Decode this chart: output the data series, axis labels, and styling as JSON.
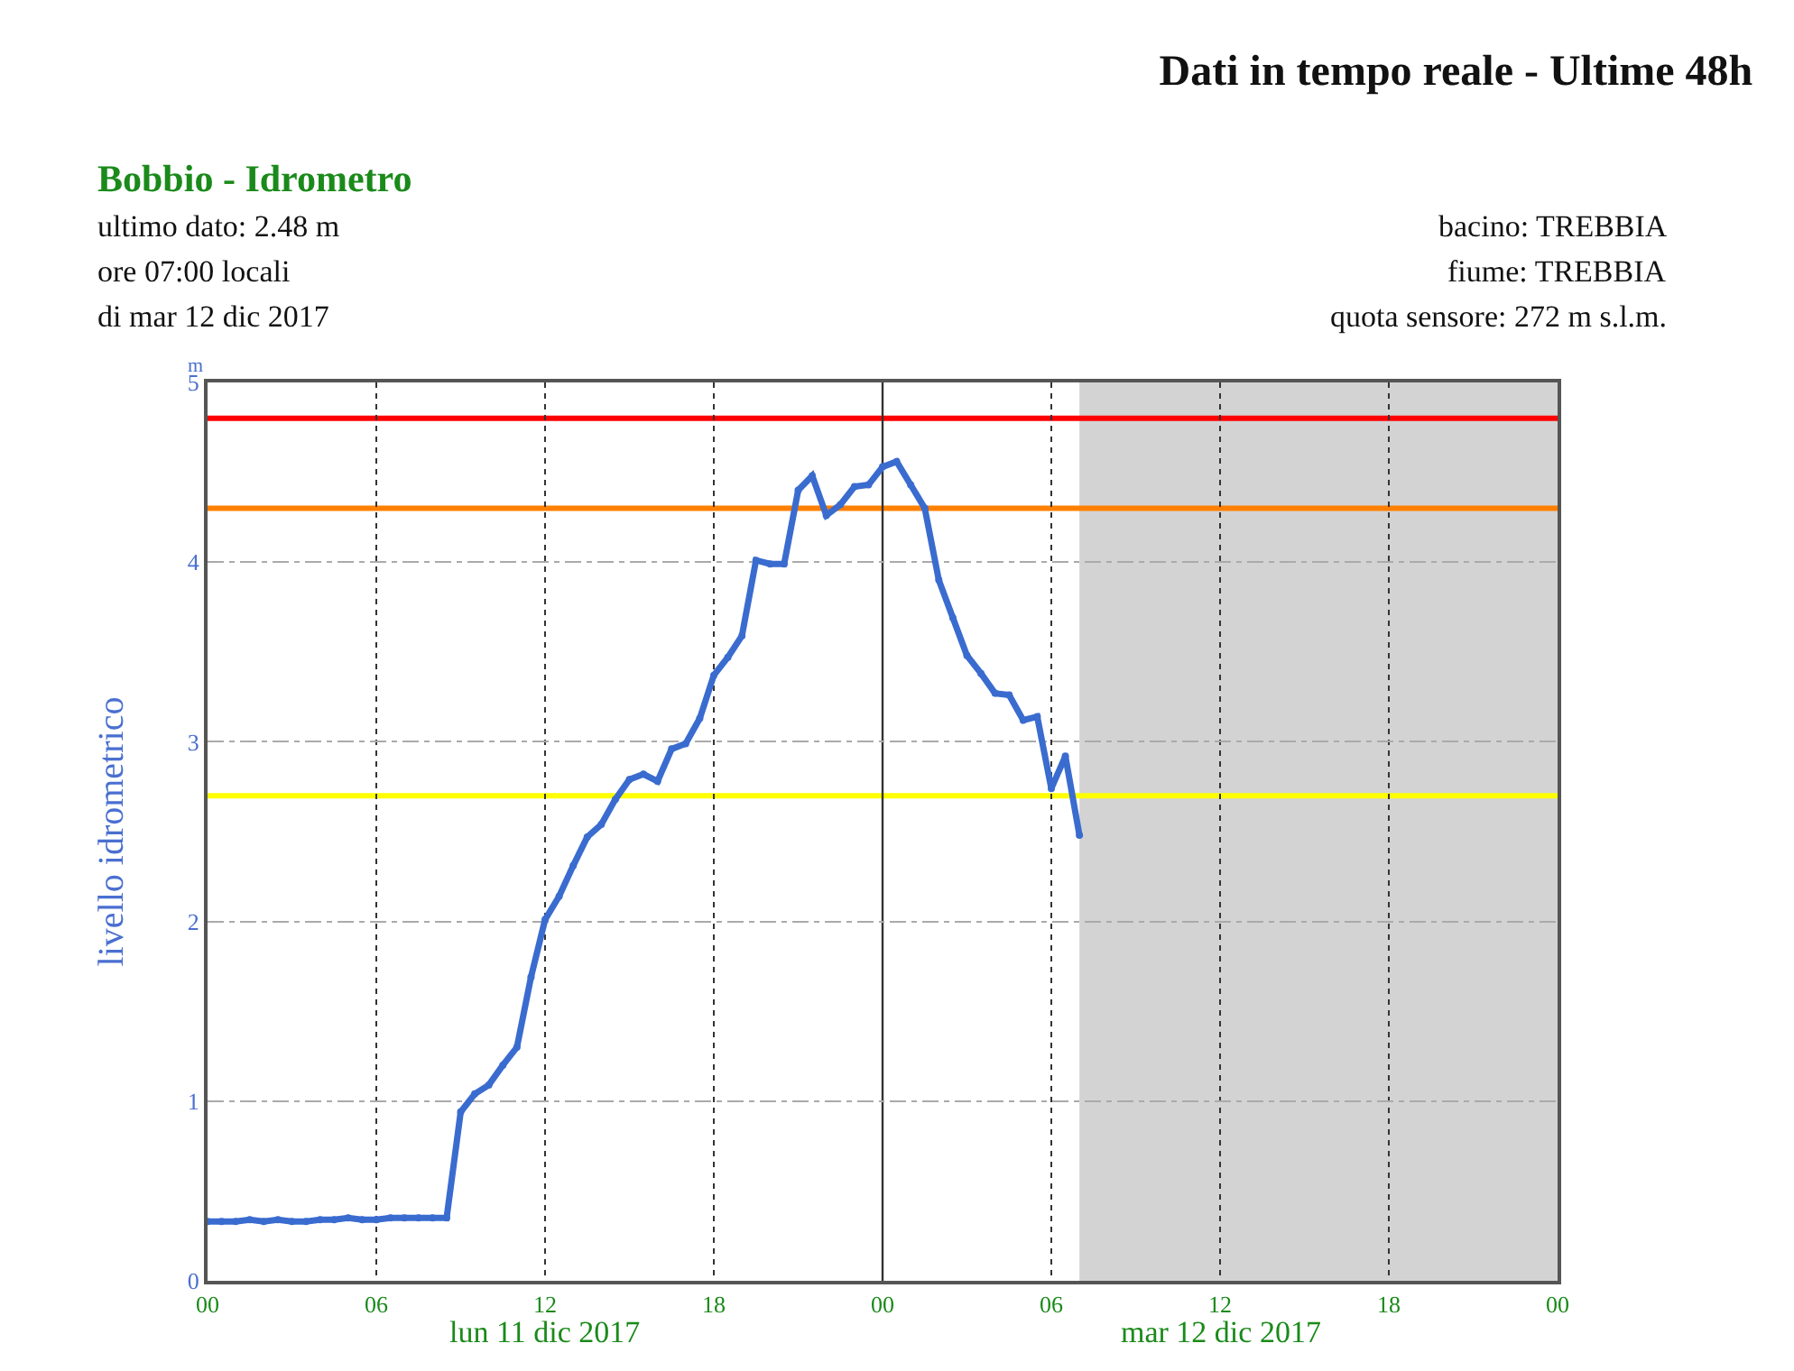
{
  "chart_data": {
    "type": "line",
    "title": "Dati in tempo reale - Ultime 48h",
    "subtitle": "Bobbio - Idrometro",
    "ylabel": "livello idrometrico",
    "annotations": [
      "m",
      "ultimo dato: 2.48 m",
      "ore 07:00 locali",
      "di mar 12 dic 2017",
      "bacino: TREBBIA",
      "fiume: TREBBIA",
      "quota sensore: 272 m s.l.m.",
      "lun 11 dic 2017",
      "mar 12 dic 2017"
    ],
    "x": [
      "2017-12-11T00:00",
      "2017-12-11T00:30",
      "2017-12-11T01:00",
      "2017-12-11T01:30",
      "2017-12-11T02:00",
      "2017-12-11T02:30",
      "2017-12-11T03:00",
      "2017-12-11T03:30",
      "2017-12-11T04:00",
      "2017-12-11T04:30",
      "2017-12-11T05:00",
      "2017-12-11T05:30",
      "2017-12-11T06:00",
      "2017-12-11T06:30",
      "2017-12-11T07:00",
      "2017-12-11T07:30",
      "2017-12-11T08:00",
      "2017-12-11T08:30",
      "2017-12-11T09:00",
      "2017-12-11T09:30",
      "2017-12-11T10:00",
      "2017-12-11T10:30",
      "2017-12-11T11:00",
      "2017-12-11T11:30",
      "2017-12-11T12:00",
      "2017-12-11T12:30",
      "2017-12-11T13:00",
      "2017-12-11T13:30",
      "2017-12-11T14:00",
      "2017-12-11T14:30",
      "2017-12-11T15:00",
      "2017-12-11T15:30",
      "2017-12-11T16:00",
      "2017-12-11T16:30",
      "2017-12-11T17:00",
      "2017-12-11T17:30",
      "2017-12-11T18:00",
      "2017-12-11T18:30",
      "2017-12-11T19:00",
      "2017-12-11T19:30",
      "2017-12-11T20:00",
      "2017-12-11T20:30",
      "2017-12-11T21:00",
      "2017-12-11T21:30",
      "2017-12-11T22:00",
      "2017-12-11T22:30",
      "2017-12-11T23:00",
      "2017-12-11T23:30",
      "2017-12-12T00:00",
      "2017-12-12T00:30",
      "2017-12-12T01:00",
      "2017-12-12T01:30",
      "2017-12-12T02:00",
      "2017-12-12T02:30",
      "2017-12-12T03:00",
      "2017-12-12T03:30",
      "2017-12-12T04:00",
      "2017-12-12T04:30",
      "2017-12-12T05:00",
      "2017-12-12T05:30",
      "2017-12-12T06:00",
      "2017-12-12T06:30",
      "2017-12-12T07:00"
    ],
    "series": [
      {
        "color": "#3a6ccf",
        "values": [
          0.33,
          0.33,
          0.33,
          0.34,
          0.33,
          0.34,
          0.33,
          0.33,
          0.34,
          0.34,
          0.35,
          0.34,
          0.34,
          0.35,
          0.35,
          0.35,
          0.35,
          0.35,
          0.94,
          1.04,
          1.09,
          1.2,
          1.3,
          1.69,
          2.01,
          2.14,
          2.31,
          2.47,
          2.54,
          2.68,
          2.79,
          2.82,
          2.78,
          2.96,
          2.99,
          3.13,
          3.37,
          3.47,
          3.59,
          4.01,
          3.99,
          3.99,
          4.4,
          4.48,
          4.26,
          4.32,
          4.42,
          4.43,
          4.53,
          4.56,
          4.43,
          4.3,
          3.9,
          3.69,
          3.48,
          3.38,
          3.27,
          3.26,
          3.12,
          3.14,
          2.74,
          2.92,
          2.48
        ]
      }
    ],
    "xlim": [
      "2017-12-11T00:00",
      "2017-12-13T00:00"
    ],
    "xticks": [
      {
        "value": "2017-12-11T00:00",
        "label": "00"
      },
      {
        "value": "2017-12-11T06:00",
        "label": "06"
      },
      {
        "value": "2017-12-11T12:00",
        "label": "12"
      },
      {
        "value": "2017-12-11T18:00",
        "label": "18"
      },
      {
        "value": "2017-12-12T00:00",
        "label": "00"
      },
      {
        "value": "2017-12-12T06:00",
        "label": "06"
      },
      {
        "value": "2017-12-12T12:00",
        "label": "12"
      },
      {
        "value": "2017-12-12T18:00",
        "label": "18"
      },
      {
        "value": "2017-12-13T00:00",
        "label": "00"
      }
    ],
    "ylim": [
      0,
      5
    ],
    "yticks": [
      0,
      1,
      2,
      3,
      4,
      5
    ],
    "ref_lines": [
      {
        "axis": "y",
        "value": 4.8,
        "color": "#ff0000"
      },
      {
        "axis": "y",
        "value": 4.3,
        "color": "#ff8000"
      },
      {
        "axis": "y",
        "value": 2.7,
        "color": "#ffff00"
      },
      {
        "axis": "x",
        "value": "2017-12-12T00:00",
        "color": "#333333",
        "line_style": "solid"
      }
    ],
    "bands": [
      {
        "axis": "x",
        "from": "2017-12-12T07:00",
        "to": "2017-12-13T00:00",
        "color": "#d3d3d3"
      }
    ],
    "grid": true,
    "marker": "circle",
    "line_style": "solid"
  }
}
